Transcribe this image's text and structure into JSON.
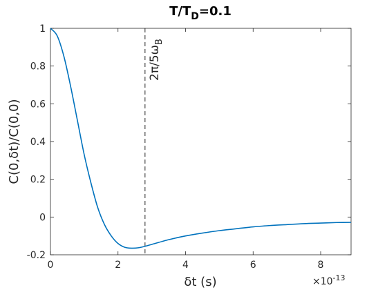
{
  "chart_data": {
    "type": "line",
    "title_main": "T/T",
    "title_sub": "D",
    "title_tail": "=0.1",
    "xlabel_sym": "δ",
    "xlabel_text": "t (s)",
    "ylabel": "C(0,δt)/C(0,0)",
    "x_multiplier_base": "×10",
    "x_multiplier_exp": "-13",
    "xlim": [
      0,
      8.9
    ],
    "ylim": [
      -0.2,
      1
    ],
    "x_ticks": [
      0,
      2,
      4,
      6,
      8
    ],
    "x_tick_labels": [
      "0",
      "2",
      "4",
      "6",
      "8"
    ],
    "y_ticks": [
      -0.2,
      0,
      0.2,
      0.4,
      0.6,
      0.8,
      1
    ],
    "y_tick_labels": [
      "-0.2",
      "0",
      "0.2",
      "0.4",
      "0.6",
      "0.8",
      "1"
    ],
    "series": [
      {
        "color": "#0072BD",
        "x": [
          0,
          0.2,
          0.4,
          0.6,
          0.8,
          1.0,
          1.2,
          1.4,
          1.6,
          1.8,
          2.0,
          2.2,
          2.4,
          2.6,
          2.8,
          3.0,
          3.5,
          4.0,
          4.5,
          5.0,
          5.5,
          6.0,
          6.5,
          7.0,
          7.5,
          8.0,
          8.5,
          8.9
        ],
        "y": [
          1.0,
          0.96,
          0.85,
          0.69,
          0.51,
          0.33,
          0.18,
          0.05,
          -0.04,
          -0.1,
          -0.14,
          -0.16,
          -0.165,
          -0.163,
          -0.155,
          -0.145,
          -0.12,
          -0.1,
          -0.085,
          -0.072,
          -0.062,
          -0.052,
          -0.045,
          -0.04,
          -0.035,
          -0.032,
          -0.029,
          -0.028
        ]
      }
    ],
    "vline": {
      "x": 2.8,
      "label_base": "2π/5ω",
      "label_sub": "B",
      "style": "dashed",
      "color": "#262626"
    },
    "grid": false
  }
}
